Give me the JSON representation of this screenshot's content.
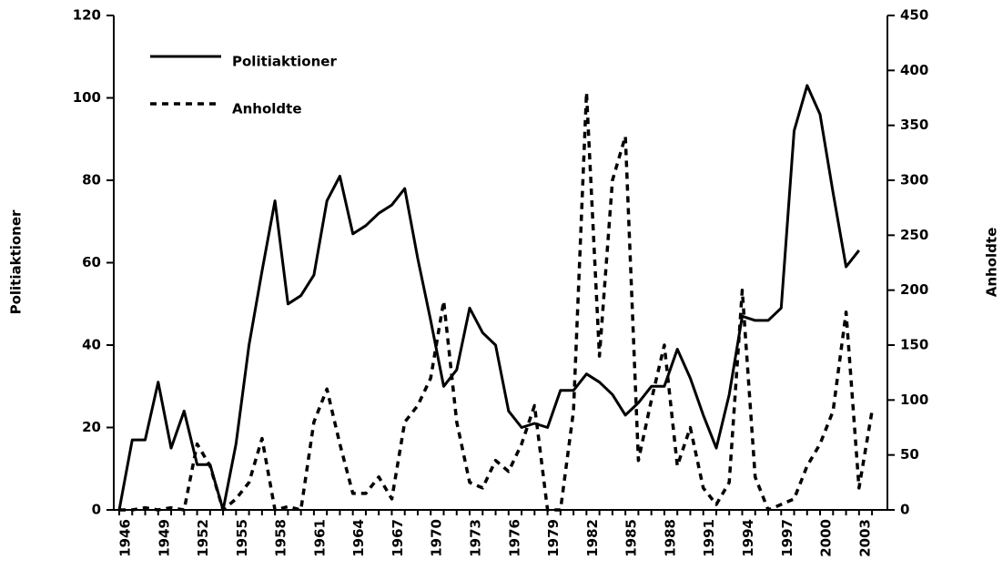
{
  "chart_data": {
    "type": "line",
    "y_label": "Politiaktioner",
    "y2_label": "Anholdte",
    "categories": [
      "1946",
      null,
      null,
      "1949",
      null,
      null,
      "1952",
      null,
      null,
      "1955",
      null,
      null,
      "1958",
      null,
      null,
      "1961",
      null,
      null,
      "1964",
      null,
      null,
      "1967",
      null,
      null,
      "1970",
      null,
      null,
      "1973",
      null,
      null,
      "1976",
      null,
      null,
      "1979",
      null,
      null,
      "1982",
      null,
      null,
      "1985",
      null,
      null,
      "1988",
      null,
      null,
      "1991",
      null,
      null,
      "1994",
      null,
      null,
      "1997",
      null,
      null,
      "2000",
      null,
      null,
      "2003",
      null
    ],
    "series": [
      {
        "name": "Politiaktioner",
        "color": "#000000",
        "dash": false,
        "values": [
          0,
          17,
          17,
          31,
          15,
          24,
          11,
          11,
          0,
          16,
          40,
          58,
          75,
          50,
          52,
          57,
          75,
          81,
          67,
          69,
          72,
          74,
          78,
          61,
          46,
          30,
          34,
          49,
          43,
          40,
          24,
          20,
          21,
          20,
          29,
          29,
          33,
          31,
          28,
          23,
          26,
          30,
          30,
          39,
          32,
          23,
          15,
          28,
          47,
          46,
          46,
          49,
          92,
          103,
          96,
          77,
          59,
          63,
          null
        ]
      },
      {
        "name": "Anholdte",
        "color": "#000000",
        "dash": true,
        "axis": "y2",
        "values": [
          0,
          0,
          2,
          0,
          2,
          0,
          60,
          40,
          0,
          10,
          25,
          65,
          0,
          3,
          0,
          80,
          110,
          60,
          15,
          15,
          30,
          10,
          80,
          95,
          120,
          190,
          80,
          25,
          20,
          45,
          35,
          60,
          95,
          0,
          0,
          90,
          380,
          140,
          300,
          340,
          45,
          100,
          150,
          40,
          75,
          20,
          5,
          25,
          200,
          30,
          0,
          5,
          10,
          40,
          60,
          90,
          180,
          20,
          90
        ]
      }
    ],
    "ylim": [
      0,
      120
    ],
    "yticks": [
      0,
      20,
      40,
      60,
      80,
      100,
      120
    ],
    "y2lim": [
      0,
      450
    ],
    "y2ticks": [
      0,
      50,
      100,
      150,
      200,
      250,
      300,
      350,
      400,
      450
    ],
    "legend": "upper left"
  }
}
